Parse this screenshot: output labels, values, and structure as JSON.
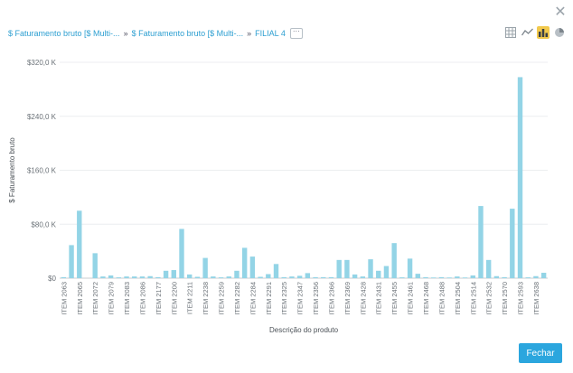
{
  "breadcrumb": {
    "items": [
      "$ Faturamento bruto [$ Multi-...",
      "$ Faturamento bruto [$ Multi-...",
      "FILIAL 4"
    ],
    "more_label": "···"
  },
  "view_tools": [
    {
      "name": "table-view-icon",
      "active": false
    },
    {
      "name": "line-chart-icon",
      "active": false
    },
    {
      "name": "bar-chart-icon",
      "active": true
    },
    {
      "name": "pie-chart-icon",
      "active": false
    }
  ],
  "footer": {
    "close_label": "Fechar"
  },
  "colors": {
    "bar": "#93d4e6",
    "accent": "#2ba6de",
    "active_tool": "#f2c94c"
  },
  "chart_data": {
    "type": "bar",
    "xlabel": "Descrição do produto",
    "ylabel": "$ Faturamento bruto",
    "ylim": [
      0,
      320000
    ],
    "yticks": [
      "$0",
      "$80,0 K",
      "$160,0 K",
      "$240,0 K",
      "$320,0 K"
    ],
    "ytick_values": [
      0,
      80000,
      160000,
      240000,
      320000
    ],
    "grid": true,
    "categories": [
      "ITEM 2063",
      "ITEM 2065",
      "ITEM 2072",
      "ITEM 2079",
      "ITEM 2083",
      "ITEM 2086",
      "ITEM 2177",
      "ITEM 2200",
      "ITEM 2211",
      "ITEM 2238",
      "ITEM 2259",
      "ITEM 2282",
      "ITEM 2284",
      "ITEM 2291",
      "ITEM 2325",
      "ITEM 2347",
      "ITEM 2356",
      "ITEM 2366",
      "ITEM 2369",
      "ITEM 2428",
      "ITEM 2431",
      "ITEM 2455",
      "ITEM 2461",
      "ITEM 2468",
      "ITEM 2488",
      "ITEM 2504",
      "ITEM 2514",
      "ITEM 2532",
      "ITEM 2570",
      "ITEM 2593",
      "ITEM 2638"
    ],
    "values": [
      [
        1500,
        49000
      ],
      [
        100000,
        0
      ],
      [
        37000,
        2500
      ],
      [
        4000,
        1200
      ],
      [
        2500,
        2500
      ],
      [
        2500,
        3000
      ],
      [
        1500,
        11000
      ],
      [
        12000,
        73000
      ],
      [
        5500,
        2000
      ],
      [
        30000,
        2500
      ],
      [
        1200,
        2500
      ],
      [
        11000,
        45000
      ],
      [
        32000,
        2000
      ],
      [
        6000,
        21000
      ],
      [
        1500,
        2500
      ],
      [
        3500,
        7500
      ],
      [
        1500,
        1500
      ],
      [
        1500,
        27000
      ],
      [
        27000,
        5500
      ],
      [
        2500,
        28000
      ],
      [
        11000,
        18000
      ],
      [
        52000,
        1200
      ],
      [
        29000,
        6500
      ],
      [
        1500,
        1000
      ],
      [
        1500,
        1000
      ],
      [
        2500,
        1000
      ],
      [
        4000,
        107000
      ],
      [
        27000,
        3000
      ],
      [
        1500,
        103000
      ],
      [
        298000,
        1200
      ],
      [
        3000,
        8000
      ]
    ]
  }
}
